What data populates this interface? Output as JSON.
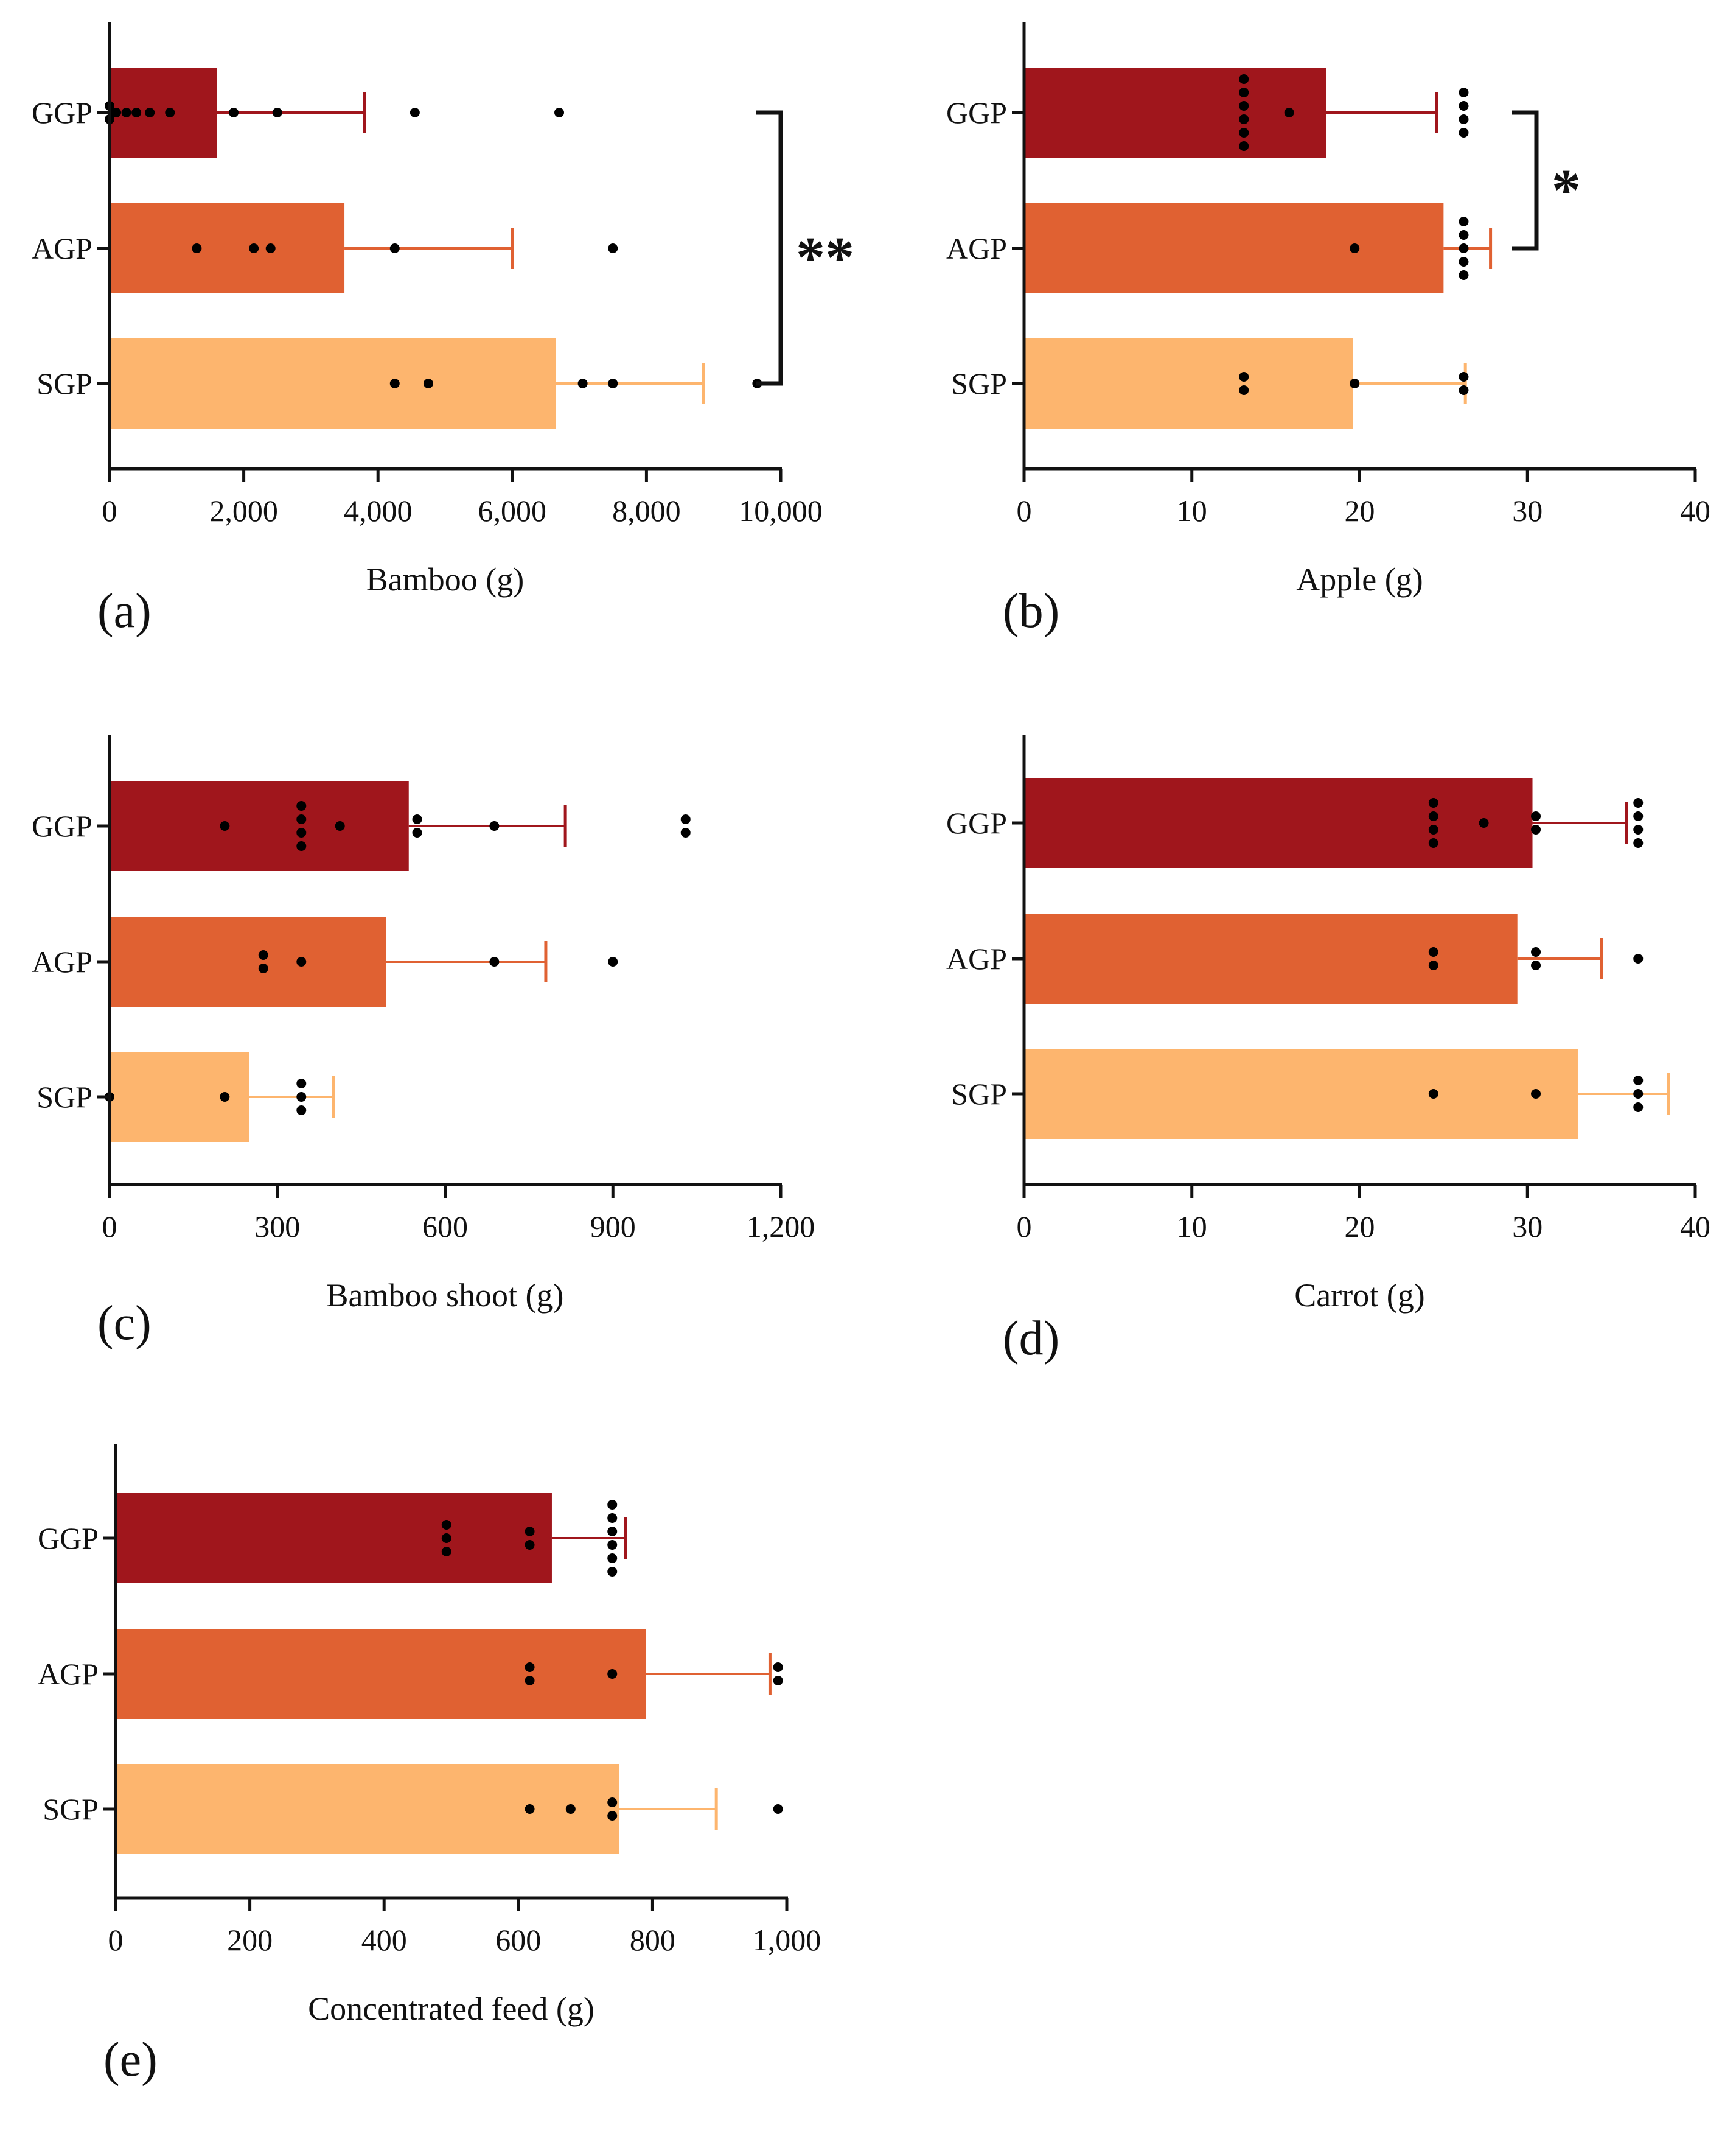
{
  "colors": {
    "GGP": "#a0161c",
    "AGP": "#e06132",
    "SGP": "#fdb56e",
    "axis": "#111111",
    "dot": "#000000"
  },
  "chart_data": [
    {
      "type": "bar",
      "orientation": "horizontal",
      "panel_label": "(a)",
      "xlabel": "Bamboo (g)",
      "xlim": [
        0,
        10000
      ],
      "xticks": [
        0,
        2000,
        4000,
        6000,
        8000,
        10000
      ],
      "xtick_labels": [
        "0",
        "2,000",
        "4,000",
        "6,000",
        "8,000",
        "10,000"
      ],
      "categories": [
        "GGP",
        "AGP",
        "SGP"
      ],
      "values": [
        1600,
        3500,
        6650
      ],
      "error": [
        3800,
        6000,
        8850
      ],
      "points": [
        [
          0,
          30,
          60,
          100,
          250,
          400,
          600,
          900,
          1850,
          2500,
          4550,
          6700
        ],
        [
          1300,
          2150,
          2400,
          4250,
          7500
        ],
        [
          4250,
          4750,
          7050,
          7500,
          9650
        ]
      ],
      "significance": [
        {
          "from": "GGP",
          "to": "SGP",
          "label": "**"
        }
      ]
    },
    {
      "type": "bar",
      "orientation": "horizontal",
      "panel_label": "(b)",
      "xlabel": "Apple (g)",
      "xlim": [
        0,
        40
      ],
      "xticks": [
        0,
        10,
        20,
        30,
        40
      ],
      "xtick_labels": [
        "0",
        "10",
        "20",
        "30",
        "40"
      ],
      "categories": [
        "GGP",
        "AGP",
        "SGP"
      ],
      "values": [
        18,
        25,
        19.6
      ],
      "error": [
        24.6,
        27.8,
        26.3
      ],
      "points": [
        [
          13.1,
          13.1,
          13.1,
          13.1,
          13.1,
          13.1,
          15.8,
          26.2,
          26.2,
          26.2,
          26.2
        ],
        [
          19.7,
          26.2,
          26.2,
          26.2,
          26.2,
          26.2
        ],
        [
          13.1,
          13.1,
          19.7,
          26.2,
          26.2
        ]
      ],
      "significance": [
        {
          "from": "GGP",
          "to": "AGP",
          "label": "*"
        }
      ]
    },
    {
      "type": "bar",
      "orientation": "horizontal",
      "panel_label": "(c)",
      "xlabel": "Bamboo shoot (g)",
      "xlim": [
        0,
        1200
      ],
      "xticks": [
        0,
        300,
        600,
        900,
        1200
      ],
      "xtick_labels": [
        "0",
        "300",
        "600",
        "900",
        "1,200"
      ],
      "categories": [
        "GGP",
        "AGP",
        "SGP"
      ],
      "values": [
        535,
        495,
        250
      ],
      "error": [
        815,
        780,
        400
      ],
      "points": [
        [
          206,
          343,
          343,
          343,
          343,
          412,
          550,
          550,
          688,
          1030,
          1030
        ],
        [
          275,
          275,
          343,
          688,
          900
        ],
        [
          0,
          206,
          343,
          343,
          343
        ]
      ],
      "significance": []
    },
    {
      "type": "bar",
      "orientation": "horizontal",
      "panel_label": "(d)",
      "xlabel": "Carrot (g)",
      "xlim": [
        0,
        40
      ],
      "xticks": [
        0,
        10,
        20,
        30,
        40
      ],
      "xtick_labels": [
        "0",
        "10",
        "20",
        "30",
        "40"
      ],
      "categories": [
        "GGP",
        "AGP",
        "SGP"
      ],
      "values": [
        30.3,
        29.4,
        33
      ],
      "error": [
        35.9,
        34.4,
        38.4
      ],
      "points": [
        [
          24.4,
          24.4,
          24.4,
          24.4,
          27.4,
          30.5,
          30.5,
          36.6,
          36.6,
          36.6,
          36.6
        ],
        [
          24.4,
          24.4,
          30.5,
          30.5,
          36.6
        ],
        [
          24.4,
          30.5,
          36.6,
          36.6,
          36.6
        ]
      ],
      "significance": []
    },
    {
      "type": "bar",
      "orientation": "horizontal",
      "panel_label": "(e)",
      "xlabel": "Concentrated feed (g)",
      "xlim": [
        0,
        1000
      ],
      "xticks": [
        0,
        200,
        400,
        600,
        800,
        1000
      ],
      "xtick_labels": [
        "0",
        "200",
        "400",
        "600",
        "800",
        "1,000"
      ],
      "categories": [
        "GGP",
        "AGP",
        "SGP"
      ],
      "values": [
        650,
        790,
        750
      ],
      "error": [
        760,
        975,
        895
      ],
      "points": [
        [
          493,
          493,
          493,
          617,
          617,
          740,
          740,
          740,
          740,
          740,
          740
        ],
        [
          617,
          617,
          740,
          987,
          987
        ],
        [
          617,
          678,
          740,
          740,
          987
        ]
      ],
      "significance": []
    }
  ]
}
